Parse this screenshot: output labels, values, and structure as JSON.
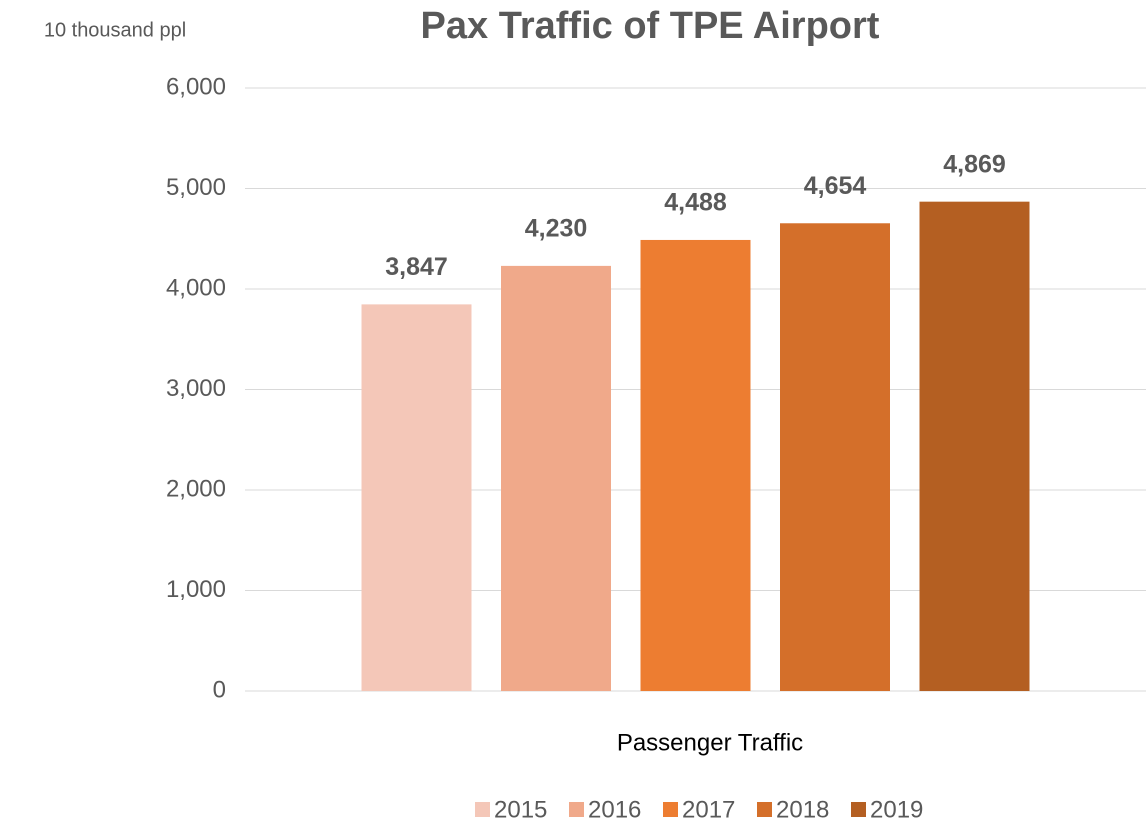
{
  "chart_data": {
    "type": "bar",
    "title": "Pax Traffic of TPE Airport",
    "y_unit_label": "10 thousand ppl",
    "x_label": "Passenger Traffic",
    "categories": [
      "Passenger Traffic"
    ],
    "series": [
      {
        "name": "2015",
        "color": "#f4c7b8",
        "values": [
          3847
        ],
        "value_labels": [
          "3,847"
        ]
      },
      {
        "name": "2016",
        "color": "#f0a98a",
        "values": [
          4230
        ],
        "value_labels": [
          "4,230"
        ]
      },
      {
        "name": "2017",
        "color": "#ed7d31",
        "values": [
          4488
        ],
        "value_labels": [
          "4,488"
        ]
      },
      {
        "name": "2018",
        "color": "#d46f2a",
        "values": [
          4654
        ],
        "value_labels": [
          "4,654"
        ]
      },
      {
        "name": "2019",
        "color": "#b45f22",
        "values": [
          4869
        ],
        "value_labels": [
          "4,869"
        ]
      }
    ],
    "ylim": [
      0,
      6000
    ],
    "yticks": [
      0,
      {
        "value": 1000,
        "label": "1,000"
      },
      {
        "value": 2000,
        "label": "2,000"
      },
      {
        "value": 3000,
        "label": "3,000"
      },
      {
        "value": 4000,
        "label": "4,000"
      },
      {
        "value": 5000,
        "label": "5,000"
      },
      {
        "value": 6000,
        "label": "6,000"
      }
    ],
    "grid": true,
    "legend": "bottom"
  }
}
